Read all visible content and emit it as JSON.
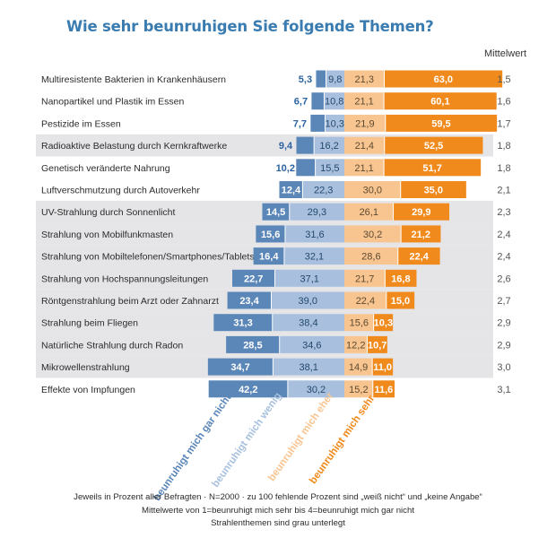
{
  "title": "Wie sehr beunruhigen Sie folgende Themen?",
  "mean_header": "Mittelwert",
  "chart_data": {
    "type": "bar",
    "stacked": "diverging",
    "categories": [
      "Multiresistente Bakterien in Krankenhäusern",
      "Nanopartikel und Plastik im Essen",
      "Pestizide im Essen",
      "Radioaktive Belastung durch Kernkraftwerke",
      "Genetisch veränderte Nahrung",
      "Luftverschmutzung durch Autoverkehr",
      "UV-Strahlung durch Sonnenlicht",
      "Strahlung von Mobilfunkmasten",
      "Strahlung von Mobiltelefonen/Smartphones/Tablets",
      "Strahlung von Hochspannungsleitungen",
      "Röntgenstrahlung beim Arzt oder Zahnarzt",
      "Strahlung beim Fliegen",
      "Natürliche Strahlung durch Radon",
      "Mikrowellenstrahlung",
      "Effekte von Impfungen"
    ],
    "shaded_rows": [
      3,
      6,
      7,
      8,
      9,
      10,
      11,
      12,
      13
    ],
    "series": [
      {
        "name": "beunruhigt mich gar nicht",
        "color": "#5a86b8",
        "values": [
          5.3,
          6.7,
          7.7,
          9.4,
          10.2,
          12.4,
          14.5,
          15.6,
          16.4,
          22.7,
          23.4,
          31.3,
          28.5,
          34.7,
          42.2
        ],
        "labels": [
          "5,3",
          "6,7",
          "7,7",
          "9,4",
          "10,2",
          "12,4",
          "14,5",
          "15,6",
          "16,4",
          "22,7",
          "23,4",
          "31,3",
          "28,5",
          "34,7",
          "42,2"
        ]
      },
      {
        "name": "beunruhigt mich wenig",
        "color": "#a8c0de",
        "values": [
          9.8,
          10.8,
          10.3,
          16.2,
          15.5,
          22.3,
          29.3,
          31.6,
          32.1,
          37.1,
          39.0,
          38.4,
          34.6,
          38.1,
          30.2
        ],
        "labels": [
          "9,8",
          "10,8",
          "10,3",
          "16,2",
          "15,5",
          "22,3",
          "29,3",
          "31,6",
          "32,1",
          "37,1",
          "39,0",
          "38,4",
          "34,6",
          "38,1",
          "30,2"
        ]
      },
      {
        "name": "beunruhigt mich eher",
        "color": "#f8c591",
        "values": [
          21.3,
          21.1,
          21.9,
          21.4,
          21.1,
          30.0,
          26.1,
          30.2,
          28.6,
          21.7,
          22.4,
          15.6,
          12.2,
          14.9,
          15.2
        ],
        "labels": [
          "21,3",
          "21,1",
          "21,9",
          "21,4",
          "21,1",
          "30,0",
          "26,1",
          "30,2",
          "28,6",
          "21,7",
          "22,4",
          "15,6",
          "12,2",
          "14,9",
          "15,2"
        ]
      },
      {
        "name": "beunruhigt mich sehr",
        "color": "#f08a1c",
        "values": [
          63.0,
          60.1,
          59.5,
          52.5,
          51.7,
          35.0,
          29.9,
          21.2,
          22.4,
          16.8,
          15.0,
          10.3,
          10.7,
          11.0,
          11.6
        ],
        "labels": [
          "63,0",
          "60,1",
          "59,5",
          "52,5",
          "51,7",
          "35,0",
          "29,9",
          "21,2",
          "22,4",
          "16,8",
          "15,0",
          "10,3",
          "10,7",
          "11,0",
          "11,6"
        ]
      }
    ],
    "means": [
      "1,5",
      "1,6",
      "1,7",
      "1,8",
      "1,8",
      "2,1",
      "2,3",
      "2,4",
      "2,4",
      "2,6",
      "2,7",
      "2,9",
      "2,9",
      "3,0",
      "3,1"
    ]
  },
  "footnotes": [
    "Jeweils in Prozent aller Befragten · N=2000 · zu 100 fehlende Prozent sind „weiß nicht“ und „keine Angabe“",
    "Mittelwerte von 1=beunruhigt mich sehr bis 4=beunruhigt mich gar nicht",
    "Strahlenthemen sind grau unterlegt"
  ]
}
